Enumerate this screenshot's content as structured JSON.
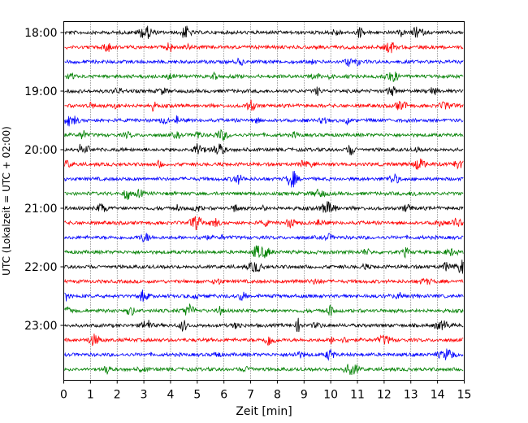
{
  "chart_data": {
    "type": "line",
    "title": "",
    "xlabel": "Zeit  [min]",
    "ylabel": "UTC (Lokalzeit = UTC + 02:00)",
    "xlim": [
      0,
      15
    ],
    "x_ticks": [
      "0",
      "1",
      "2",
      "3",
      "4",
      "5",
      "6",
      "7",
      "8",
      "9",
      "10",
      "11",
      "12",
      "13",
      "14",
      "15"
    ],
    "y_tick_labels": [
      "18:00",
      "19:00",
      "20:00",
      "21:00",
      "22:00",
      "23:00"
    ],
    "grid": "vertical dotted",
    "trace_interval_min": 15,
    "start_time": "18:00",
    "trace_count": 24,
    "trace_colors": [
      "#000000",
      "#ff0000",
      "#0000ff",
      "#008000"
    ]
  }
}
